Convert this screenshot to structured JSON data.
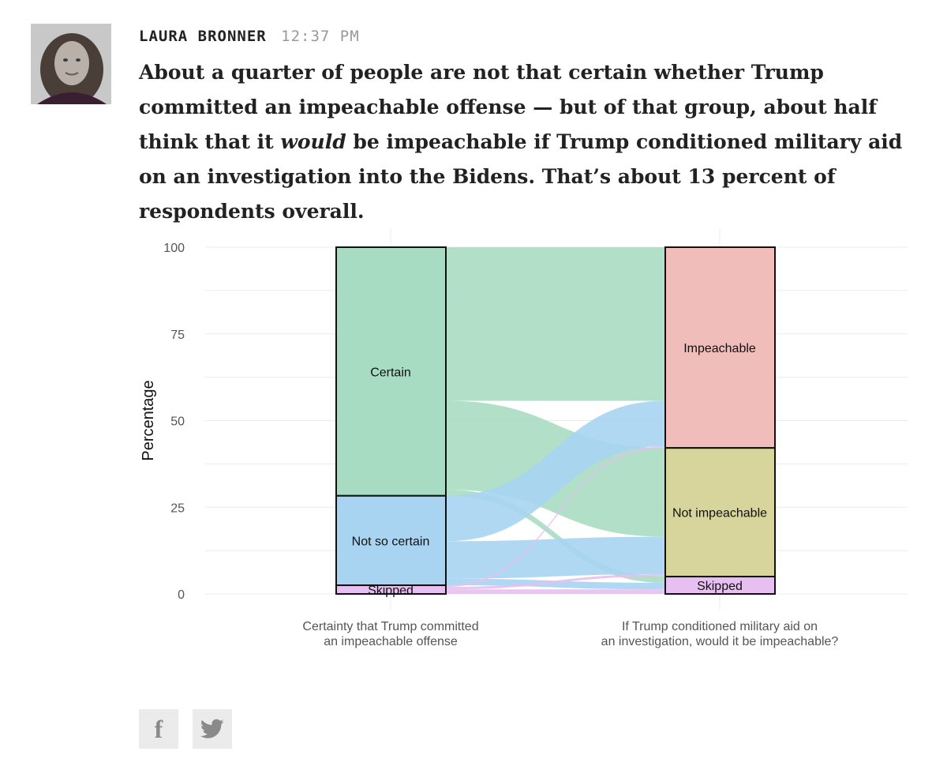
{
  "post": {
    "author": "LAURA BRONNER",
    "time": "12:37 PM",
    "text_part1": "About a quarter of people are not that certain whether Trump committed an impeachable offense — but of that group, about half think that it ",
    "text_emphasis": "would",
    "text_part2": " be impeachable if Trump conditioned military aid on an investigation into the Bidens. That’s about 13 percent of respondents overall."
  },
  "chart_data": {
    "type": "alluvial",
    "ylabel": "Percentage",
    "ylim": [
      0,
      100
    ],
    "yticks": [
      0,
      25,
      50,
      75,
      100
    ],
    "axes": [
      {
        "label_line1": "Certainty that Trump committed",
        "label_line2": "an impeachable offense"
      },
      {
        "label_line1": "If Trump conditioned military aid on",
        "label_line2": "an investigation, would it be impeachable?"
      }
    ],
    "strata_left": [
      {
        "name": "Certain",
        "value": 71.7,
        "color": "#a8dcc2"
      },
      {
        "name": "Not so certain",
        "value": 25.8,
        "color": "#a8d4f2"
      },
      {
        "name": "Skipped",
        "value": 2.5,
        "color": "#e7bff0"
      }
    ],
    "strata_right": [
      {
        "name": "Impeachable",
        "value": 57.9,
        "color": "#f0bdbb"
      },
      {
        "name": "Not impeachable",
        "value": 37.1,
        "color": "#d8d59c"
      },
      {
        "name": "Skipped",
        "value": 5.0,
        "color": "#e7bff0"
      }
    ],
    "flows": [
      {
        "from": "Certain",
        "to": "Impeachable",
        "value": 44.3
      },
      {
        "from": "Certain",
        "to": "Not impeachable",
        "value": 25.6
      },
      {
        "from": "Certain",
        "to": "Skipped",
        "value": 1.8
      },
      {
        "from": "Not so certain",
        "to": "Impeachable",
        "value": 13.1
      },
      {
        "from": "Not so certain",
        "to": "Not impeachable",
        "value": 10.8
      },
      {
        "from": "Not so certain",
        "to": "Skipped",
        "value": 1.9
      },
      {
        "from": "Skipped",
        "to": "Impeachable",
        "value": 0.5
      },
      {
        "from": "Skipped",
        "to": "Not impeachable",
        "value": 0.7
      },
      {
        "from": "Skipped",
        "to": "Skipped",
        "value": 1.3
      }
    ]
  },
  "share": {
    "facebook_icon": "f"
  }
}
